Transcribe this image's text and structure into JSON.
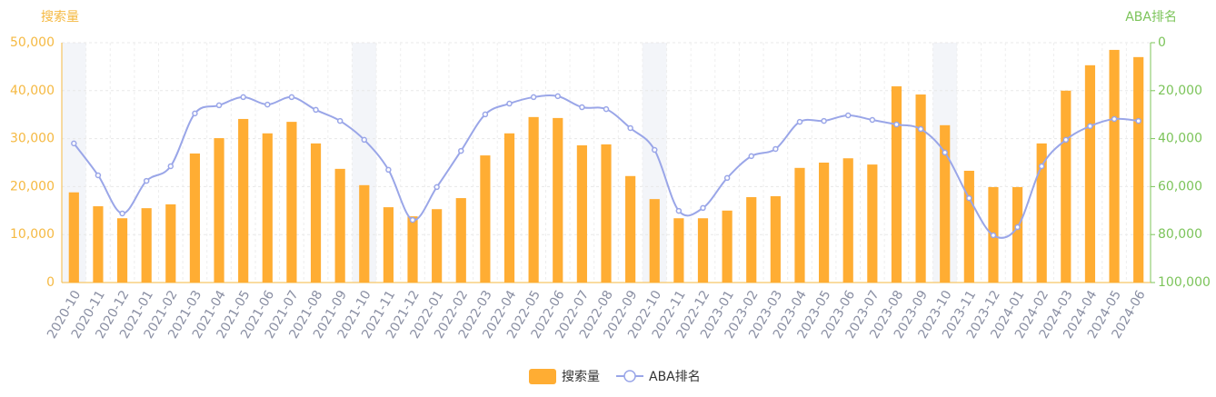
{
  "chart_data": {
    "type": "bar-line",
    "y_label": "搜索量",
    "y2_label": "ABA排名",
    "categories": [
      "2020-10",
      "2020-11",
      "2020-12",
      "2021-01",
      "2021-02",
      "2021-03",
      "2021-04",
      "2021-05",
      "2021-06",
      "2021-07",
      "2021-08",
      "2021-09",
      "2021-10",
      "2021-11",
      "2021-12",
      "2022-01",
      "2022-02",
      "2022-03",
      "2022-04",
      "2022-05",
      "2022-06",
      "2022-07",
      "2022-08",
      "2022-09",
      "2022-10",
      "2022-11",
      "2022-12",
      "2023-01",
      "2023-02",
      "2023-03",
      "2023-04",
      "2023-05",
      "2023-06",
      "2023-07",
      "2023-08",
      "2023-09",
      "2023-10",
      "2023-11",
      "2023-12",
      "2024-01",
      "2024-02",
      "2024-03",
      "2024-04",
      "2024-05",
      "2024-06"
    ],
    "series": [
      {
        "name": "搜索量",
        "kind": "bar",
        "color": "#ffad33",
        "axis": "y",
        "values": [
          18800,
          15900,
          13400,
          15500,
          16300,
          26900,
          30100,
          34100,
          31100,
          33500,
          29000,
          23700,
          20300,
          15700,
          13800,
          15300,
          17600,
          26500,
          31100,
          34500,
          34300,
          28600,
          28800,
          22200,
          17400,
          13400,
          13400,
          15000,
          17800,
          18000,
          23900,
          25000,
          25900,
          24600,
          40900,
          39200,
          32800,
          23300,
          19900,
          19900,
          29000,
          40000,
          45300,
          48500,
          47000
        ]
      },
      {
        "name": "ABA排名",
        "kind": "line",
        "color": "#9aa6e8",
        "axis": "y2",
        "values": [
          42000,
          55300,
          71200,
          57600,
          51500,
          29500,
          26100,
          22700,
          25800,
          22700,
          28000,
          32600,
          40500,
          53000,
          73900,
          60200,
          45100,
          29900,
          25400,
          22700,
          22300,
          26900,
          27700,
          35600,
          44700,
          70100,
          68900,
          56400,
          47300,
          44300,
          33000,
          32600,
          30300,
          32200,
          34100,
          36000,
          45800,
          64800,
          80300,
          76900,
          51500,
          40500,
          34800,
          31800,
          32600
        ]
      }
    ],
    "ylim": [
      0,
      50000
    ],
    "yticks": [
      0,
      {
        "value": 10000,
        "label": "10,000"
      },
      {
        "value": 20000,
        "label": "20,000"
      },
      {
        "value": 30000,
        "label": "30,000"
      },
      {
        "value": 40000,
        "label": "40,000"
      },
      {
        "value": 50000,
        "label": "50,000"
      }
    ],
    "y2lim": [
      0,
      100000
    ],
    "y2_inverted": true,
    "y2ticks": [
      0,
      {
        "value": 20000,
        "label": "20,000"
      },
      {
        "value": 40000,
        "label": "40,000"
      },
      {
        "value": 60000,
        "label": "60,000"
      },
      {
        "value": 80000,
        "label": "80,000"
      },
      {
        "value": 100000,
        "label": "100,000"
      }
    ],
    "y_color": "#f5b942",
    "y2_color": "#7cc45a",
    "highlight_categories": [
      0,
      12,
      24,
      36
    ],
    "grid": true,
    "legend": "bottom"
  }
}
